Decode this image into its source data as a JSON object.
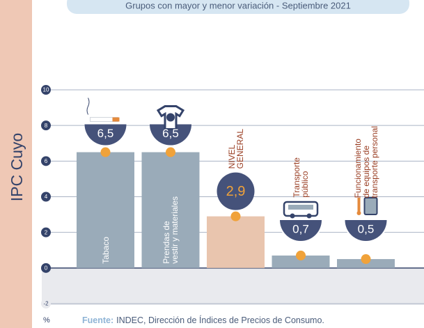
{
  "chart_data": {
    "type": "bar",
    "title": "IPC Cuyo",
    "subtitle": "Grupos con mayor y menor variación - Septiembre 2021",
    "unit": "%",
    "source_label": "Fuente:",
    "source": "INDEC, Dirección de Índices de Precios de Consumo.",
    "categories": [
      "Tabaco",
      "Prendas de\nvestir y materiales",
      "NIVEL\nGENERAL",
      "Transporte\npúblico",
      "Funcionamiento\nde equipos de\ntransporte personal"
    ],
    "values": [
      6.5,
      6.5,
      2.9,
      0.7,
      0.5
    ],
    "value_labels": [
      "6,5",
      "6,5",
      "2,9",
      "0,7",
      "0,5"
    ],
    "colors": [
      "#9aabb9",
      "#9aabb9",
      "#e9c5ae",
      "#9aabb9",
      "#9aabb9"
    ],
    "ylim": [
      -2,
      10
    ],
    "yticks": [
      -2,
      0,
      2,
      4,
      6,
      8,
      10
    ],
    "grid": true
  }
}
